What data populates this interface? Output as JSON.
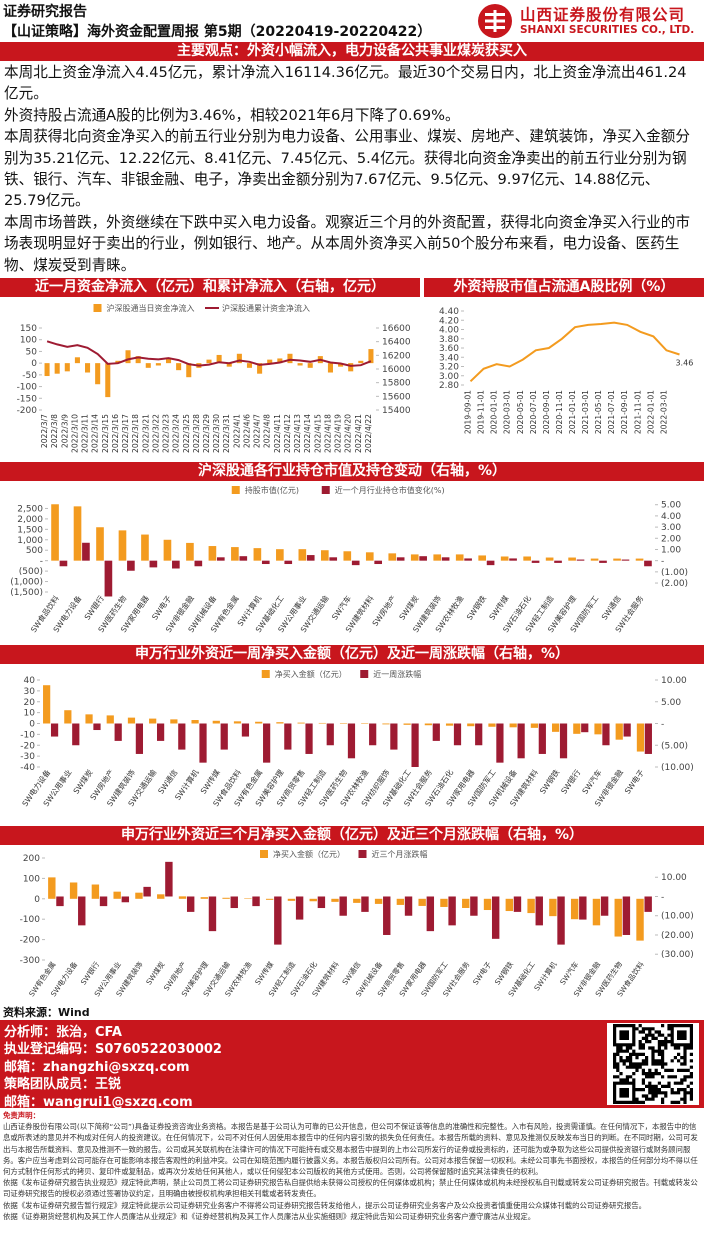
{
  "header": {
    "report_type": "证券研究报告",
    "title": "【山证策略】海外资金配置周报 第5期（20220419-20220422）",
    "company_cn": "山西证券股份有限公司",
    "company_en": "SHANXI SECURITIES CO., LTD."
  },
  "summary": {
    "title": "主要观点：外资小幅流入，电力设备公共事业煤炭获买入",
    "paragraphs": [
      "本周北上资金净流入4.45亿元，累计净流入16114.36亿元。最近30个交易日内，北上资金净流出461.24亿元。",
      "外资持股占流通A股的比例为3.46%，相较2021年6月下降了0.69%。",
      "本周获得北向资金净买入的前五行业分别为电力设备、公用事业、煤炭、房地产、建筑装饰，净买入金额分别为35.21亿元、12.22亿元、8.41亿元、7.45亿元、5.4亿元。获得北向资金净卖出的前五行业分别为钢铁、银行、汽车、非银金融、电子，净卖出金额分别为7.67亿元、9.5亿元、9.97亿元、14.88亿元、25.79亿元。",
      "本周市场普跌，外资继续在下跌中买入电力设备。观察近三个月的外资配置，获得北向资金净买入行业的市场表现明显好于卖出的行业，例如银行、地产。从本周外资净买入前50个股分布来看，电力设备、医药生物、煤炭受到青睐。"
    ]
  },
  "chart_data": [
    {
      "type": "combo",
      "title": "近一月资金净流入（亿元）和累计净流入（右轴，亿元）",
      "categories": [
        "2022/3/7",
        "2022/3/8",
        "2022/3/9",
        "2022/3/10",
        "2022/3/11",
        "2022/3/14",
        "2022/3/15",
        "2022/3/16",
        "2022/3/17",
        "2022/3/18",
        "2022/3/21",
        "2022/3/22",
        "2022/3/23",
        "2022/3/24",
        "2022/3/25",
        "2022/3/28",
        "2022/3/29",
        "2022/3/30",
        "2022/3/31",
        "2022/4/1",
        "2022/4/6",
        "2022/4/7",
        "2022/4/8",
        "2022/4/11",
        "2022/4/12",
        "2022/4/13",
        "2022/4/14",
        "2022/4/15",
        "2022/4/18",
        "2022/4/19",
        "2022/4/20",
        "2022/4/21",
        "2022/4/22"
      ],
      "series": [
        {
          "name": "沪深股通当日资金净流入",
          "mark": "bar",
          "color": "#f39b1f",
          "values": [
            -55,
            -45,
            -35,
            25,
            -40,
            -90,
            -145,
            10,
            55,
            30,
            -20,
            -10,
            20,
            -30,
            -60,
            -20,
            15,
            35,
            -15,
            40,
            -20,
            -45,
            15,
            20,
            40,
            -10,
            -20,
            30,
            -40,
            -15,
            -35,
            10,
            60
          ]
        },
        {
          "name": "沪深股通累计资金净流入",
          "mark": "line",
          "axis": "y2",
          "color": "#9e1b32",
          "values": [
            16405,
            16360,
            16325,
            16350,
            16310,
            16220,
            16075,
            16085,
            16140,
            16170,
            16150,
            16140,
            16160,
            16130,
            16070,
            16050,
            16065,
            16100,
            16085,
            16125,
            16105,
            16060,
            16075,
            16095,
            16135,
            16125,
            16105,
            16135,
            16095,
            16080,
            16045,
            16055,
            16114.36
          ]
        }
      ],
      "ylim": [
        -200,
        150
      ],
      "yticks": [
        150,
        100,
        50,
        0,
        -50,
        -100,
        -150,
        -200
      ],
      "y2lim": [
        15400,
        16600
      ],
      "y2ticks": [
        16600,
        16400,
        16200,
        16000,
        15800,
        15600,
        15400
      ]
    },
    {
      "type": "line",
      "title": "外资持股市值占流通A股比例（%）",
      "categories": [
        "2019-09-01",
        "2019-11-01",
        "2020-01-01",
        "2020-03-01",
        "2020-05-01",
        "2020-07-01",
        "2020-09-01",
        "2020-11-01",
        "2021-01-01",
        "2021-03-01",
        "2021-05-01",
        "2021-07-01",
        "2021-09-01",
        "2021-11-01",
        "2022-01-01",
        "2022-03-01",
        null
      ],
      "values": [
        2.88,
        3.15,
        3.25,
        3.2,
        3.35,
        3.55,
        3.6,
        3.8,
        4.05,
        4.1,
        4.12,
        4.15,
        4.1,
        3.95,
        3.85,
        3.55,
        3.46
      ],
      "color": "#f39b1f",
      "data_labels": "last",
      "ylim": [
        2.8,
        4.4
      ],
      "yticks": [
        {
          "value": 4.4,
          "label": "4.40"
        },
        {
          "value": 4.2,
          "label": "4.20"
        },
        {
          "value": 4.0,
          "label": "4.00"
        },
        {
          "value": 3.8,
          "label": "3.80"
        },
        {
          "value": 3.6,
          "label": "3.60"
        },
        {
          "value": 3.4,
          "label": "3.40"
        },
        {
          "value": 3.2,
          "label": "3.20"
        },
        {
          "value": 3.0,
          "label": "3.00"
        },
        {
          "value": 2.8,
          "label": "2.80"
        }
      ]
    },
    {
      "type": "bar",
      "title": "沪深股通各行业持仓市值及持仓变动（右轴，%）",
      "categories": [
        "SW食品饮料",
        "SW电力设备",
        "SW银行",
        "SW医药生物",
        "SW家用电器",
        "SW电子",
        "SW非银金融",
        "SW机械设备",
        "SW有色金属",
        "SW计算机",
        "SW基础化工",
        "SW公用事业",
        "SW交通运输",
        "SW汽车",
        "SW建筑材料",
        "SW房地产",
        "SW煤炭",
        "SW建筑装饰",
        "SW农林牧渔",
        "SW钢铁",
        "SW传媒",
        "SW石油石化",
        "SW轻工制造",
        "SW美容护理",
        "SW国防军工",
        "SW通信",
        "SW社会服务"
      ],
      "series": [
        {
          "name": "持股市值(亿元)",
          "color": "#f39b1f",
          "values": [
            2700,
            2600,
            1600,
            1450,
            1250,
            1000,
            850,
            700,
            650,
            600,
            550,
            550,
            500,
            450,
            400,
            350,
            300,
            300,
            300,
            250,
            200,
            200,
            150,
            150,
            100,
            100,
            100
          ]
        },
        {
          "name": "近一个月行业持仓市值变化(%)",
          "axis": "y2",
          "color": "#9e1b32",
          "values": [
            -0.5,
            1.6,
            -3.2,
            -0.9,
            -0.6,
            -0.7,
            -0.5,
            0.3,
            0.4,
            -0.3,
            -0.3,
            0.5,
            0.3,
            -0.4,
            -0.3,
            0.3,
            0.4,
            0.3,
            0.2,
            -0.4,
            0.2,
            -0.2,
            -0.2,
            0.1,
            -0.2,
            0.1,
            -0.5
          ]
        }
      ],
      "ylim": [
        -1500,
        3000
      ],
      "yticks": [
        {
          "value": 2500,
          "label": "2,500"
        },
        {
          "value": 2000,
          "label": "2,000"
        },
        {
          "value": 1500,
          "label": "1,500"
        },
        {
          "value": 1000,
          "label": "1,000"
        },
        500,
        {
          "value": 0,
          "label": "-"
        },
        {
          "value": -500,
          "label": "(500)"
        },
        {
          "value": -1000,
          "label": "(1,000)"
        },
        {
          "value": -1500,
          "label": "(1,500)"
        }
      ],
      "y2lim": [
        -2.8,
        5.6
      ],
      "y2ticks": [
        {
          "value": 5,
          "label": "5.00"
        },
        {
          "value": 4,
          "label": "4.00"
        },
        {
          "value": 3,
          "label": "3.00"
        },
        {
          "value": 2,
          "label": "2.00"
        },
        {
          "value": 1,
          "label": "1.00"
        },
        {
          "value": 0,
          "label": "-"
        },
        {
          "value": -1,
          "label": "(1.00)"
        },
        {
          "value": -2,
          "label": "(2.00)"
        }
      ]
    },
    {
      "type": "bar",
      "title": "申万行业外资近一周净买入金额（亿元）及近一周涨跌幅（右轴，%）",
      "categories": [
        "SW电力设备",
        "SW公用事业",
        "SW煤炭",
        "SW房地产",
        "SW建筑装饰",
        "SW交通运输",
        "SW通信",
        "SW计算机",
        "SW传媒",
        "SW食品饮料",
        "SW有色金属",
        "SW美容护理",
        "SW商贸零售",
        "SW轻工制造",
        "SW医药生物",
        "SW农林牧渔",
        "SW纺织服饰",
        "SW基础化工",
        "SW社会服务",
        "SW石油石化",
        "SW家用电器",
        "SW国防军工",
        "SW机械设备",
        "SW建筑材料",
        "SW钢铁",
        "SW银行",
        "SW汽车",
        "SW非银金融",
        "SW电子"
      ],
      "series": [
        {
          "name": "净买入金额（亿元）",
          "color": "#f39b1f",
          "values": [
            35.21,
            12.22,
            8.41,
            7.45,
            5.4,
            4.5,
            3.8,
            3.2,
            2.5,
            2.0,
            1.6,
            1.2,
            0.8,
            0.5,
            0.2,
            -0.3,
            -0.8,
            -1.2,
            -1.6,
            -2.0,
            -2.5,
            -3.0,
            -3.5,
            -4.0,
            -7.67,
            -9.5,
            -9.97,
            -14.88,
            -25.79
          ]
        },
        {
          "name": "近一周涨跌幅",
          "axis": "y2",
          "color": "#9e1b32",
          "values": [
            -3,
            -5,
            -1.5,
            -4,
            -7,
            -4,
            -6,
            -9,
            -6,
            -3,
            -9,
            -6,
            -7,
            -5,
            -8,
            -5,
            -6,
            -10,
            -4,
            -5,
            -5,
            -9,
            -8,
            -7,
            -8,
            -2,
            -5,
            -3,
            -7
          ]
        }
      ],
      "ylim": [
        -40,
        40
      ],
      "yticks": [
        40,
        30,
        20,
        10,
        0,
        -10,
        -20,
        -30,
        -40
      ],
      "y2lim": [
        -10,
        10
      ],
      "y2ticks": [
        {
          "value": 10,
          "label": "10.00"
        },
        {
          "value": 5,
          "label": "5.00"
        },
        {
          "value": 0,
          "label": "-"
        },
        {
          "value": -5,
          "label": "(5.00)"
        },
        {
          "value": -10,
          "label": "(10.00)"
        }
      ]
    },
    {
      "type": "bar",
      "title": "申万行业外资近三个月净买入金额（亿元）及近三个月涨跌幅（右轴，%）",
      "categories": [
        "SW有色金属",
        "SW电力设备",
        "SW银行",
        "SW公用事业",
        "SW建筑装饰",
        "SW煤炭",
        "SW房地产",
        "SW美容护理",
        "SW交通运输",
        "SW农林牧渔",
        "SW传媒",
        "SW轻工制造",
        "SW石油石化",
        "SW建筑材料",
        "SW通信",
        "SW机械设备",
        "SW商贸零售",
        "SW家用电器",
        "SW国防军工",
        "SW社会服务",
        "SW电子",
        "SW钢铁",
        "SW基础化工",
        "SW计算机",
        "SW汽车",
        "SW非银金融",
        "SW医药生物",
        "SW食品饮料"
      ],
      "series": [
        {
          "name": "净买入金额（亿元）",
          "color": "#f39b1f",
          "values": [
            105,
            80,
            70,
            35,
            30,
            22,
            12,
            8,
            5,
            2,
            -5,
            -10,
            -12,
            -15,
            -20,
            -25,
            -30,
            -35,
            -40,
            -45,
            -55,
            -60,
            -70,
            -85,
            -100,
            -130,
            -185,
            -205
          ]
        },
        {
          "name": "近三个月涨跌幅",
          "axis": "y2",
          "color": "#9e1b32",
          "values": [
            -5,
            -15,
            -5,
            -3,
            5,
            18,
            -8,
            -18,
            -6,
            -5,
            -25,
            -12,
            -6,
            -10,
            -8,
            -20,
            -10,
            -18,
            -15,
            -10,
            -22,
            -8,
            -15,
            -25,
            -12,
            -10,
            -20,
            -8
          ]
        }
      ],
      "ylim": [
        -300,
        200
      ],
      "yticks": [
        200,
        100,
        0,
        -100,
        -200,
        -300
      ],
      "y2lim": [
        -33,
        20
      ],
      "y2ticks": [
        {
          "value": 10,
          "label": "10.00"
        },
        {
          "value": 0,
          "label": "-"
        },
        {
          "value": -10,
          "label": "(10.00)"
        },
        {
          "value": -20,
          "label": "(20.00)"
        },
        {
          "value": -30,
          "label": "(30.00)"
        }
      ]
    }
  ],
  "source": "资料来源：Wind",
  "contacts": [
    "分析师：张治，CFA",
    "执业登记编码：S0760522030002",
    "邮箱：zhangzhi@sxzq.com",
    "策略团队成员：王锐",
    "邮箱：wangrui1@sxzq.com"
  ],
  "disclaimer": {
    "title": "免责声明：",
    "paragraphs": [
      "山西证券股份有限公司(以下简称“公司”)具备证券投资咨询业务资格。本报告是基于公司认为可靠的已公开信息，但公司不保证该等信息的准确性和完整性。入市有风险，投资需谨慎。在任何情况下，本报告中的信息或所表述的意见并不构成对任何人的投资建议。在任何情况下，公司不对任何人因使用本报告中的任何内容引致的损失负任何责任。本报告所载的资料、意见及推测仅反映发布当日的判断。在不同时期，公司可发出与本报告所载资料、意见及推测不一致的报告。公司或其关联机构在法律许可的情况下可能持有或交易本报告中提到的上市公司所发行的证券或投资标的，还可能为或争取为这些公司提供投资银行或财务顾问服务。客户应当考虑到公司可能存在可能影响本报告客观性的利益冲突。公司在知晓范围内履行披露义务。本报告版权归公司所有。公司对本报告保留一切权利。未经公司事先书面授权，本报告的任何部分均不得以任何方式制作任何形式的拷贝、复印件或复制品，或再次分发给任何其他人，或以任何侵犯本公司版权的其他方式使用。否则，公司将保留随时追究其法律责任的权利。",
      "依据《发布证券研究报告执业规范》规定特此声明，禁止公司员工将公司证券研究报告私自提供给未获得公司授权的任何媒体或机构；禁止任何媒体或机构未经授权私自刊载或转发公司证券研究报告。刊载或转发公司证券研究报告的授权必须通过签署协议约定，且明确由被授权机构承担相关刊载或者转发责任。",
      "依据《发布证券研究报告暂行规定》规定特此提示公司证券研究业务客户不得将公司证券研究报告转发给他人，提示公司证券研究业务客户及公众投资者慎重使用公众媒体刊载的公司证券研究报告。",
      "依据《证券期货经营机构及其工作人员廉洁从业规定》和《证券经营机构及其工作人员廉洁从业实施细则》规定特此告知公司证券研究业务客户遵守廉洁从业规定。"
    ]
  }
}
